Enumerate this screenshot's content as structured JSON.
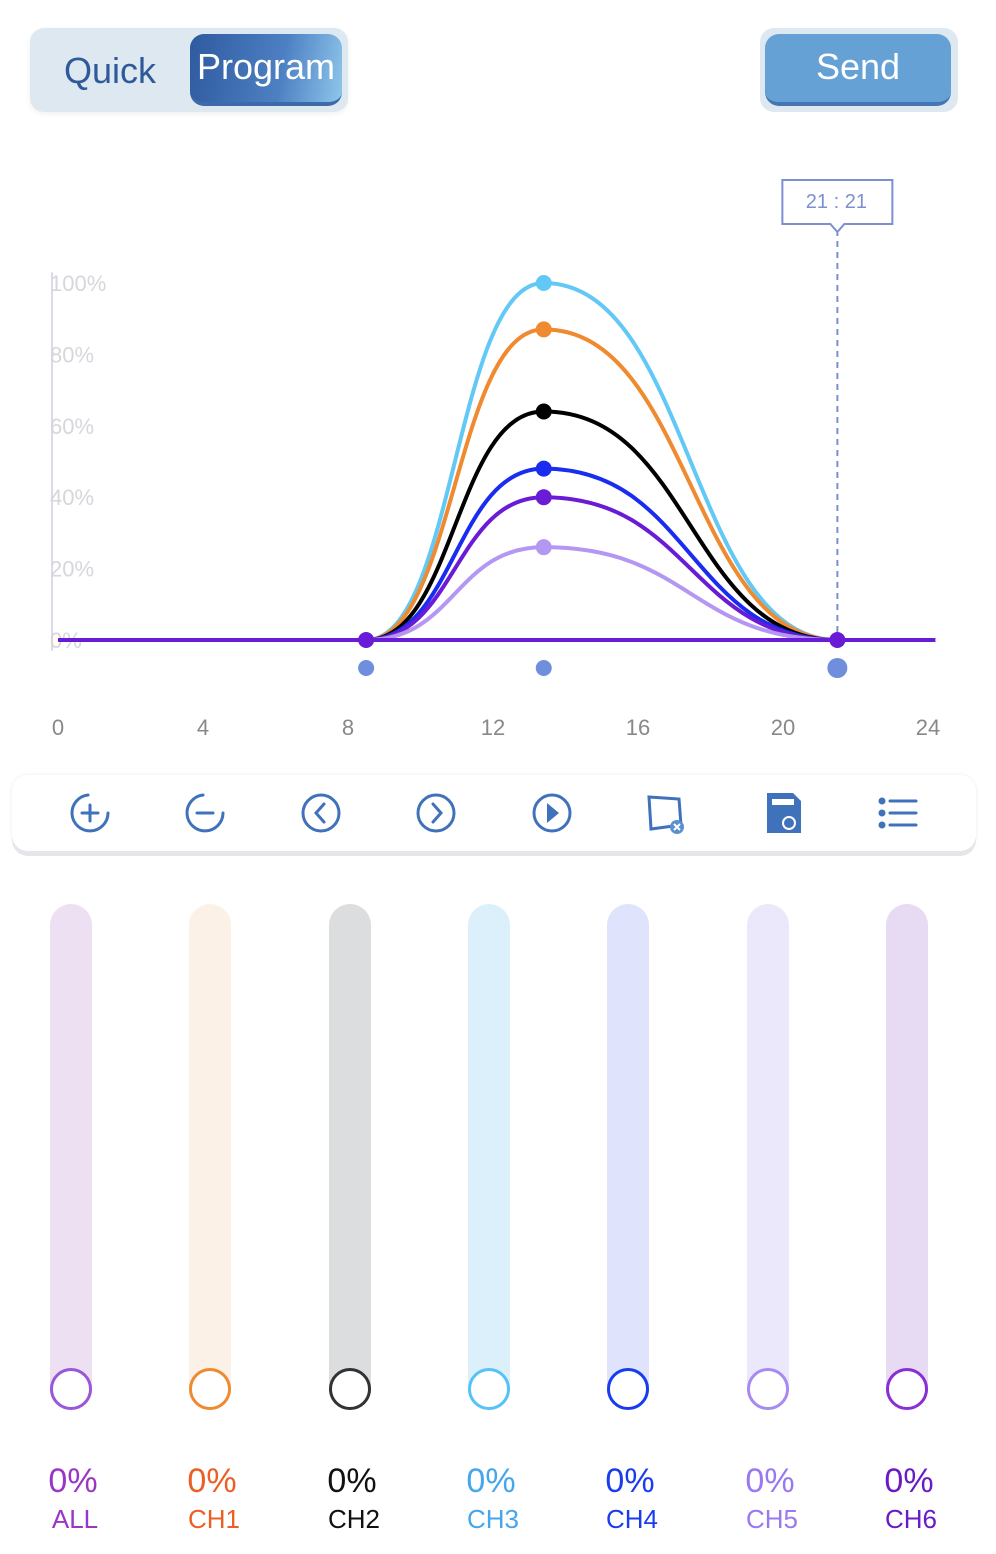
{
  "mode_toggle": {
    "quick": "Quick",
    "program": "Program",
    "selected": "Program"
  },
  "send_label": "Send",
  "toolbar": [
    "add-point-icon",
    "remove-point-icon",
    "previous-icon",
    "next-icon",
    "play-icon",
    "clear-icon",
    "save-icon",
    "list-icon"
  ],
  "chart_data": {
    "type": "line",
    "cursor_label": "21 : 21",
    "cursor_x": 21.35,
    "x_ticks": [
      "0",
      "4",
      "8",
      "12",
      "16",
      "20",
      "24"
    ],
    "xlim": [
      0,
      24
    ],
    "y_ticks": [
      "100%",
      "80%",
      "60%",
      "40%",
      "20%",
      "0%"
    ],
    "ylim": [
      0,
      100
    ],
    "control_points_x": [
      8.5,
      13.4,
      21.5
    ],
    "series": [
      {
        "name": "CH3",
        "color": "#62c8f5",
        "values": [
          0,
          100,
          0
        ]
      },
      {
        "name": "CH1",
        "color": "#f08a30",
        "values": [
          0,
          87,
          0
        ]
      },
      {
        "name": "CH2",
        "color": "#000000",
        "values": [
          0,
          64,
          0
        ]
      },
      {
        "name": "CH4",
        "color": "#1a2cf0",
        "values": [
          0,
          48,
          0
        ]
      },
      {
        "name": "CH6",
        "color": "#6a1bd6",
        "values": [
          0,
          40,
          0
        ]
      },
      {
        "name": "CH5",
        "color": "#b497f2",
        "values": [
          0,
          26,
          0
        ]
      }
    ]
  },
  "channels": [
    {
      "label": "ALL",
      "value": "0%",
      "color": "#9a36c6",
      "track": "#ede0f3",
      "knob": "#9a57d8"
    },
    {
      "label": "CH1",
      "value": "0%",
      "color": "#ec5f24",
      "track": "#fbf1e7",
      "knob": "#f08a30"
    },
    {
      "label": "CH2",
      "value": "0%",
      "color": "#111111",
      "track": "#dcdddf",
      "knob": "#333333"
    },
    {
      "label": "CH3",
      "value": "0%",
      "color": "#45a6ec",
      "track": "#dcf0fc",
      "knob": "#55c3f5"
    },
    {
      "label": "CH4",
      "value": "0%",
      "color": "#1a3cf0",
      "track": "#dfe3fc",
      "knob": "#1a3cf0"
    },
    {
      "label": "CH5",
      "value": "0%",
      "color": "#9a78f0",
      "track": "#ece8fc",
      "knob": "#a88af2"
    },
    {
      "label": "CH6",
      "value": "0%",
      "color": "#6a1bc6",
      "track": "#e6dbf3",
      "knob": "#8a2fd6"
    }
  ]
}
